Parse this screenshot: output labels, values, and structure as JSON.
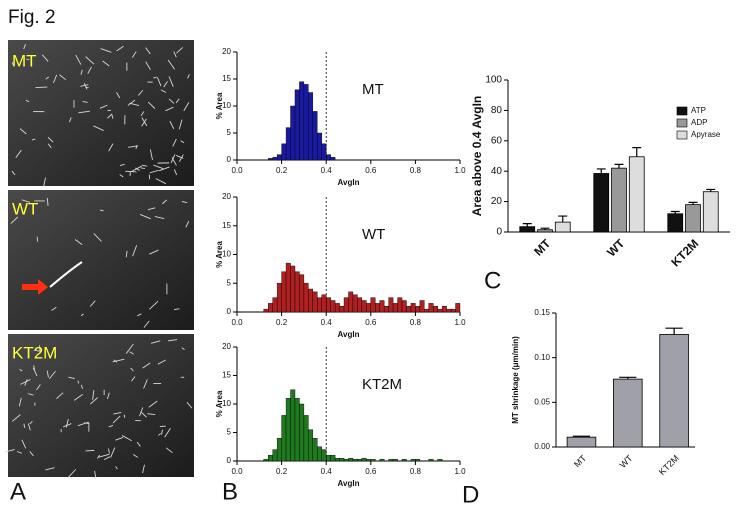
{
  "figure": {
    "title": "Fig. 2",
    "panel_labels": [
      "A",
      "B",
      "C",
      "D"
    ]
  },
  "images": [
    {
      "label": "MT"
    },
    {
      "label": "WT"
    },
    {
      "label": "KT2M"
    }
  ],
  "chart_data": [
    {
      "type": "histogram",
      "annotation": "MT",
      "color": "#1a1aa0",
      "x_label": "AvgIn",
      "y_label": "% Area",
      "bins": [
        0.14,
        0.16,
        0.18,
        0.2,
        0.22,
        0.24,
        0.26,
        0.28,
        0.3,
        0.32,
        0.34,
        0.36,
        0.38,
        0.4,
        0.42,
        0.44
      ],
      "values": [
        0.3,
        0.5,
        1,
        3,
        6,
        10,
        13,
        14.5,
        14,
        12.5,
        9,
        5,
        3,
        1,
        0.5
      ],
      "vline": 0.4,
      "xlim": [
        0,
        1
      ],
      "ylim": [
        0,
        20
      ],
      "xticks": [
        {
          "value": 0,
          "label": "0.0"
        },
        0.2,
        0.4,
        0.6,
        0.8,
        {
          "value": 1,
          "label": "1.0"
        }
      ],
      "yticks": [
        0,
        5,
        10,
        15,
        20
      ]
    },
    {
      "type": "histogram",
      "annotation": "WT",
      "color": "#b02020",
      "x_label": "AvgIn",
      "y_label": "% Area",
      "bins": [
        0.12,
        0.14,
        0.16,
        0.18,
        0.2,
        0.22,
        0.24,
        0.26,
        0.28,
        0.3,
        0.32,
        0.34,
        0.36,
        0.38,
        0.4,
        0.42,
        0.44,
        0.46,
        0.48,
        0.5,
        0.52,
        0.54,
        0.56,
        0.58,
        0.6,
        0.62,
        0.64,
        0.66,
        0.68,
        0.7,
        0.72,
        0.74,
        0.76,
        0.78,
        0.8,
        0.82,
        0.84,
        0.86,
        0.88,
        0.9,
        0.92,
        0.94,
        0.96,
        0.98,
        1
      ],
      "values": [
        0.5,
        1.5,
        2.5,
        5,
        7,
        8.5,
        8,
        7,
        6.5,
        5,
        4,
        3.5,
        2.5,
        3,
        2.5,
        2,
        1.5,
        1,
        2.5,
        3.5,
        3,
        2.5,
        2,
        1.5,
        2.5,
        1.5,
        2,
        1,
        2.5,
        1.5,
        2.5,
        2,
        1,
        1.5,
        1,
        2,
        0.5,
        1.5,
        1,
        0.5,
        1,
        0.5,
        0.5,
        1.5
      ],
      "vline": 0.4,
      "xlim": [
        0,
        1
      ],
      "ylim": [
        0,
        20
      ],
      "xticks": [
        {
          "value": 0,
          "label": "0.0"
        },
        0.2,
        0.4,
        0.6,
        0.8,
        {
          "value": 1,
          "label": "1.0"
        }
      ],
      "yticks": [
        0,
        5,
        10,
        15,
        20
      ]
    },
    {
      "type": "histogram",
      "annotation": "KT2M",
      "color": "#1f7a1f",
      "x_label": "AvgIn",
      "y_label": "% Area",
      "bins": [
        0.12,
        0.14,
        0.16,
        0.18,
        0.2,
        0.22,
        0.24,
        0.26,
        0.28,
        0.3,
        0.32,
        0.34,
        0.36,
        0.38,
        0.4,
        0.42,
        0.44,
        0.46,
        0.48,
        0.5,
        0.52,
        0.54,
        0.56,
        0.58,
        0.6,
        0.62,
        0.64,
        0.66,
        0.68,
        0.7,
        0.72,
        0.74,
        0.76,
        0.78,
        0.8,
        0.82,
        0.84,
        0.86,
        0.88,
        0.9,
        0.92
      ],
      "values": [
        0.3,
        1,
        2,
        4,
        8,
        11,
        12.5,
        11,
        10,
        8,
        5.5,
        4,
        2.5,
        2,
        1,
        1,
        0.5,
        0.5,
        0.3,
        0.5,
        0.3,
        0.3,
        0.5,
        0.3,
        0.3,
        0,
        0.3,
        0,
        0.3,
        0.3,
        0,
        0.3,
        0,
        0.3,
        0.3,
        0,
        0,
        0.3,
        0,
        0.3
      ],
      "vline": 0.4,
      "xlim": [
        0,
        1
      ],
      "ylim": [
        0,
        20
      ],
      "xticks": [
        {
          "value": 0,
          "label": "0.0"
        },
        0.2,
        0.4,
        0.6,
        0.8,
        {
          "value": 1,
          "label": "1.0"
        }
      ],
      "yticks": [
        0,
        5,
        10,
        15,
        20
      ]
    },
    {
      "type": "bar",
      "y_label": "Area above 0.4 AvgIn",
      "categories": [
        "MT",
        "WT",
        "KT2M"
      ],
      "series": [
        {
          "name": "ATP",
          "color": "#111111",
          "values": [
            3.5,
            38.5,
            12
          ],
          "errors": [
            2,
            3,
            1.5
          ]
        },
        {
          "name": "ADP",
          "color": "#999999",
          "values": [
            1.5,
            42,
            18
          ],
          "errors": [
            1,
            2.5,
            1.5
          ]
        },
        {
          "name": "Apyrase",
          "color": "#dddddd",
          "values": [
            6.5,
            49.5,
            26.5
          ],
          "errors": [
            4,
            6,
            1.5
          ]
        }
      ],
      "ylim": [
        0,
        100
      ],
      "yticks": [
        0,
        20,
        40,
        60,
        80,
        100
      ],
      "legend": "upper right"
    },
    {
      "type": "bar",
      "y_label": "MT shrinkage (μm/min)",
      "categories": [
        "MT",
        "WT",
        "KT2M"
      ],
      "color": "#a0a0a8",
      "values": [
        0.011,
        0.076,
        0.126
      ],
      "errors": [
        0.001,
        0.002,
        0.007
      ],
      "ylim": [
        0,
        0.15
      ],
      "yticks": [
        {
          "value": 0,
          "label": "0.00"
        },
        {
          "value": 0.05,
          "label": "0.05"
        },
        {
          "value": 0.1,
          "label": "0.10"
        },
        {
          "value": 0.15,
          "label": "0.15"
        }
      ]
    }
  ]
}
